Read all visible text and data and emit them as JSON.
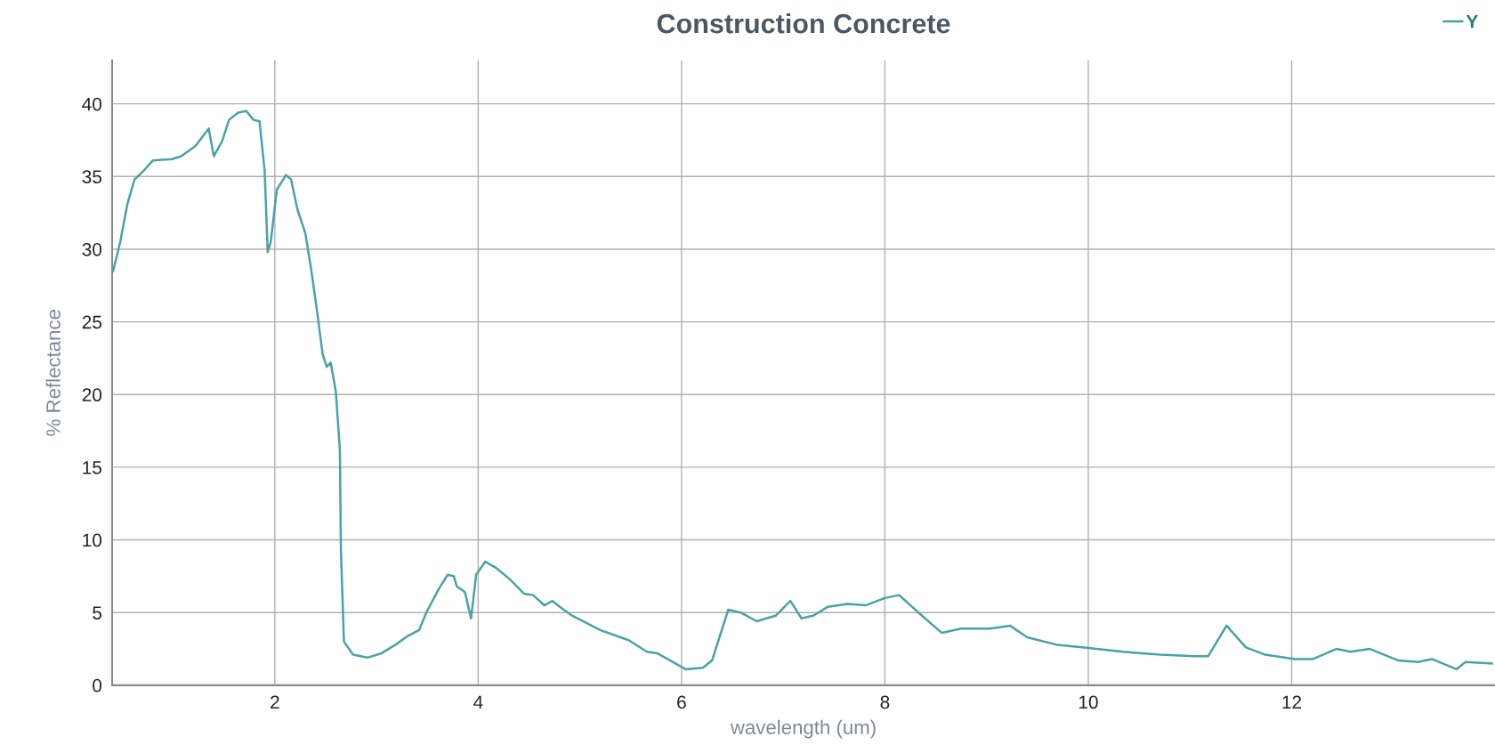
{
  "chart_data": {
    "type": "line",
    "title": "Construction Concrete",
    "xlabel": "wavelength (um)",
    "ylabel": "% Reflectance",
    "xlim": [
      0.4,
      14
    ],
    "ylim": [
      0,
      43
    ],
    "xticks": [
      2,
      4,
      6,
      8,
      10,
      12
    ],
    "yticks": [
      0,
      5,
      10,
      15,
      20,
      25,
      30,
      35,
      40
    ],
    "grid": true,
    "legend": "top right",
    "marker": "none",
    "line_style": "solid",
    "series": [
      {
        "name": "Y",
        "color": "#4aa3a3",
        "x": [
          0.41,
          0.48,
          0.55,
          0.62,
          0.71,
          0.8,
          0.99,
          1.08,
          1.22,
          1.35,
          1.4,
          1.48,
          1.55,
          1.64,
          1.72,
          1.79,
          1.85,
          1.9,
          1.93,
          1.96,
          2.02,
          2.11,
          2.16,
          2.22,
          2.3,
          2.36,
          2.42,
          2.47,
          2.51,
          2.55,
          2.6,
          2.64,
          2.65,
          2.68,
          2.77,
          2.91,
          3.05,
          3.19,
          3.31,
          3.42,
          3.49,
          3.61,
          3.7,
          3.76,
          3.79,
          3.87,
          3.93,
          3.98,
          4.07,
          4.17,
          4.31,
          4.45,
          4.54,
          4.65,
          4.73,
          4.82,
          4.92,
          5.2,
          5.48,
          5.66,
          5.76,
          5.94,
          6.04,
          6.21,
          6.3,
          6.46,
          6.58,
          6.74,
          6.93,
          7.07,
          7.18,
          7.3,
          7.44,
          7.63,
          7.81,
          8.0,
          8.14,
          8.33,
          8.56,
          8.75,
          9.03,
          9.23,
          9.4,
          9.68,
          9.96,
          10.34,
          10.71,
          11.04,
          11.18,
          11.36,
          11.55,
          11.74,
          12.03,
          12.21,
          12.44,
          12.58,
          12.77,
          13.05,
          13.24,
          13.38,
          13.62,
          13.71,
          13.97
        ],
        "values": [
          28.5,
          30.5,
          33.1,
          34.8,
          35.4,
          36.1,
          36.2,
          36.4,
          37.1,
          38.3,
          36.4,
          37.4,
          38.9,
          39.4,
          39.5,
          38.9,
          38.8,
          35.4,
          29.8,
          30.5,
          34.1,
          35.1,
          34.8,
          32.8,
          31.1,
          28.5,
          25.5,
          22.8,
          21.9,
          22.2,
          20.2,
          16.2,
          9.3,
          3.0,
          2.1,
          1.9,
          2.2,
          2.8,
          3.4,
          3.8,
          5.0,
          6.6,
          7.6,
          7.5,
          6.8,
          6.4,
          4.6,
          7.6,
          8.5,
          8.1,
          7.3,
          6.3,
          6.2,
          5.5,
          5.8,
          5.3,
          4.8,
          3.8,
          3.1,
          2.3,
          2.2,
          1.5,
          1.1,
          1.2,
          1.7,
          5.2,
          5.0,
          4.4,
          4.8,
          5.8,
          4.6,
          4.8,
          5.4,
          5.6,
          5.5,
          6.0,
          6.2,
          5.0,
          3.6,
          3.9,
          3.9,
          4.1,
          3.3,
          2.8,
          2.6,
          2.3,
          2.1,
          2.0,
          2.0,
          4.1,
          2.6,
          2.1,
          1.8,
          1.8,
          2.5,
          2.3,
          2.5,
          1.7,
          1.6,
          1.8,
          1.1,
          1.6,
          1.5
        ]
      }
    ]
  }
}
